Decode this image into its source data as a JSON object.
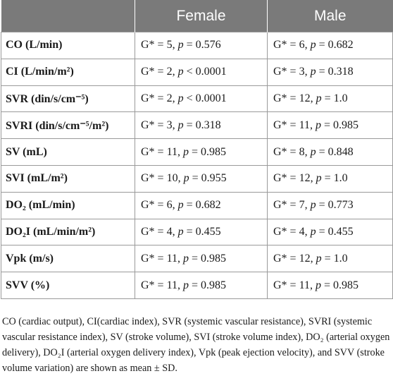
{
  "table": {
    "headers": [
      "",
      "Female",
      "Male"
    ],
    "rows": [
      {
        "label": "CO (L/min)",
        "female": "G* = 5, p = 0.576",
        "male": "G* = 6, p = 0.682"
      },
      {
        "label": "CI (L/min/m²)",
        "female": "G* = 2, p < 0.0001",
        "male": "G* = 3, p = 0.318"
      },
      {
        "label": "SVR (din/s/cm⁻⁵)",
        "female": "G* = 2, p < 0.0001",
        "male": "G* = 12, p = 1.0"
      },
      {
        "label": "SVRI (din/s/cm⁻⁵/m²)",
        "female": "G* = 3, p = 0.318",
        "male": "G* = 11, p = 0.985"
      },
      {
        "label": "SV (mL)",
        "female": "G* = 11, p = 0.985",
        "male": "G* = 8, p = 0.848"
      },
      {
        "label": "SVI (mL/m²)",
        "female": "G* = 10, p = 0.955",
        "male": "G* = 12, p = 1.0"
      },
      {
        "label": "DO₂ (mL/min)",
        "female": "G* = 6, p = 0.682",
        "male": "G* = 7, p = 0.773"
      },
      {
        "label": "DO₂I (mL/min/m²)",
        "female": "G* = 4, p = 0.455",
        "male": "G* = 4, p = 0.455"
      },
      {
        "label": "Vpk (m/s)",
        "female": "G* = 11, p = 0.985",
        "male": "G* = 12, p = 1.0"
      },
      {
        "label": "SVV (%)",
        "female": "G* = 11, p = 0.985",
        "male": "G* = 11, p = 0.985"
      }
    ]
  },
  "footnote": "CO (cardiac output), CI(cardiac index), SVR (systemic vascular resistance), SVRI (systemic vascular resistance index), SV (stroke volume), SVI (stroke volume index), DO₂ (arterial oxygen delivery), DO₂I (arterial oxygen delivery index), Vpk (peak ejection velocity), and SVV (stroke volume variation) are shown as mean ± SD."
}
